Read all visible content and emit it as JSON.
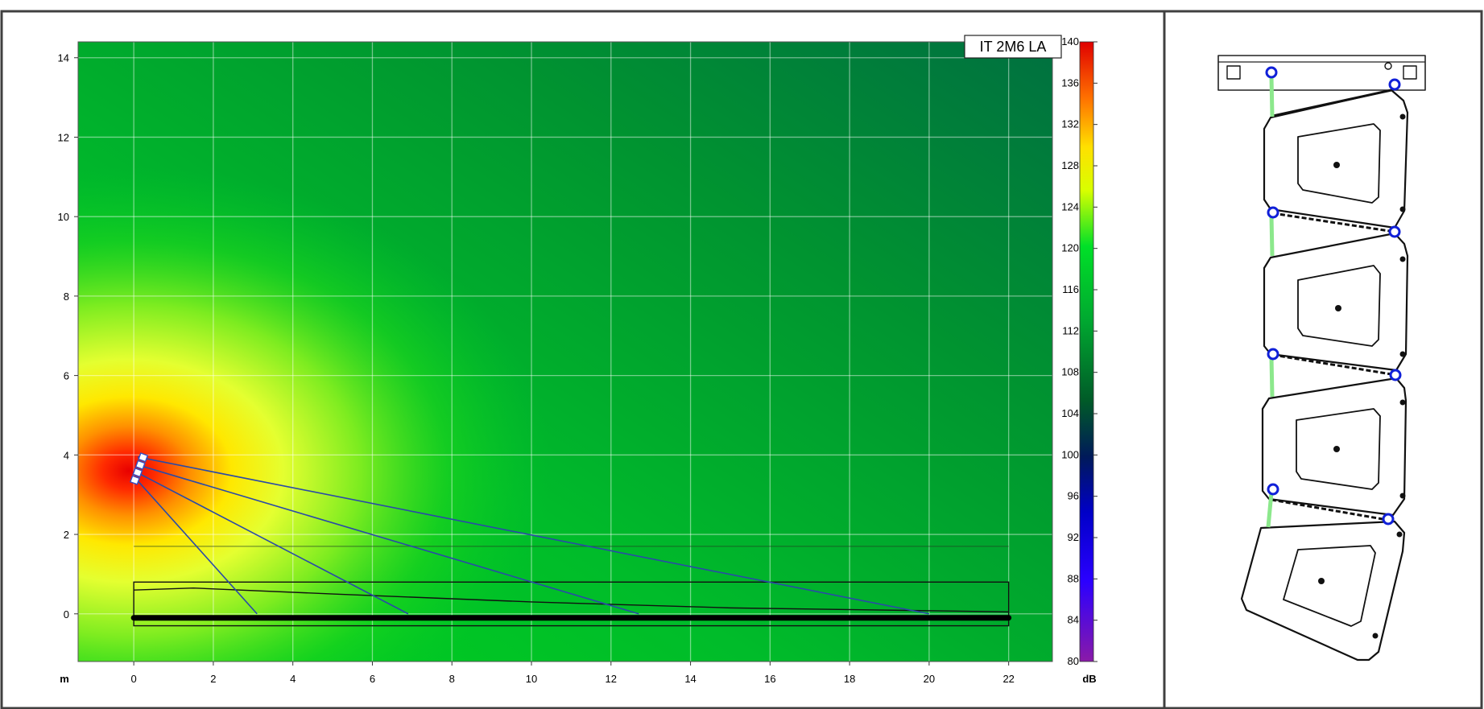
{
  "chart_data": {
    "type": "heatmap",
    "title": "",
    "model_label": "IT 2M6 LA",
    "xunit": "m",
    "colorbar_unit": "dB",
    "xlim": [
      -1.4,
      23.1
    ],
    "ylim": [
      -1.2,
      14.4
    ],
    "xticks": [
      0,
      2,
      4,
      6,
      8,
      10,
      12,
      14,
      16,
      18,
      20,
      22
    ],
    "yticks": [
      0,
      2,
      4,
      6,
      8,
      10,
      12,
      14
    ],
    "grid": true,
    "colorbar": {
      "range": [
        80,
        140
      ],
      "ticks": [
        80,
        84,
        88,
        92,
        96,
        100,
        104,
        108,
        112,
        116,
        120,
        124,
        128,
        132,
        136,
        140
      ]
    },
    "source": {
      "x": 0.1,
      "y": 3.6,
      "peak_db": 140
    },
    "array": {
      "enclosures": 4,
      "position": {
        "x": 0.1,
        "y": 3.6
      }
    },
    "aim_lines": [
      {
        "from": [
          0.1,
          3.95
        ],
        "to": [
          20.0,
          0.0
        ]
      },
      {
        "from": [
          0.1,
          3.75
        ],
        "to": [
          12.7,
          0.0
        ]
      },
      {
        "from": [
          0.1,
          3.55
        ],
        "to": [
          6.9,
          0.0
        ]
      },
      {
        "from": [
          0.1,
          3.35
        ],
        "to": [
          3.1,
          0.0
        ]
      }
    ],
    "listening_area": {
      "x_start": 0.0,
      "x_end": 22.0,
      "y_bottom": -0.3,
      "y_top": 0.8
    },
    "floor_line": {
      "x_start": 0.0,
      "x_end": 22.0,
      "y": -0.1
    },
    "reference_line": {
      "x_start": 0.0,
      "x_end": 22.0,
      "y": 1.7
    },
    "coverage_curve": [
      {
        "x": 0.0,
        "y": 0.6
      },
      {
        "x": 1.5,
        "y": 0.65
      },
      {
        "x": 5.0,
        "y": 0.5
      },
      {
        "x": 10.0,
        "y": 0.3
      },
      {
        "x": 15.0,
        "y": 0.15
      },
      {
        "x": 22.0,
        "y": 0.05
      }
    ]
  }
}
